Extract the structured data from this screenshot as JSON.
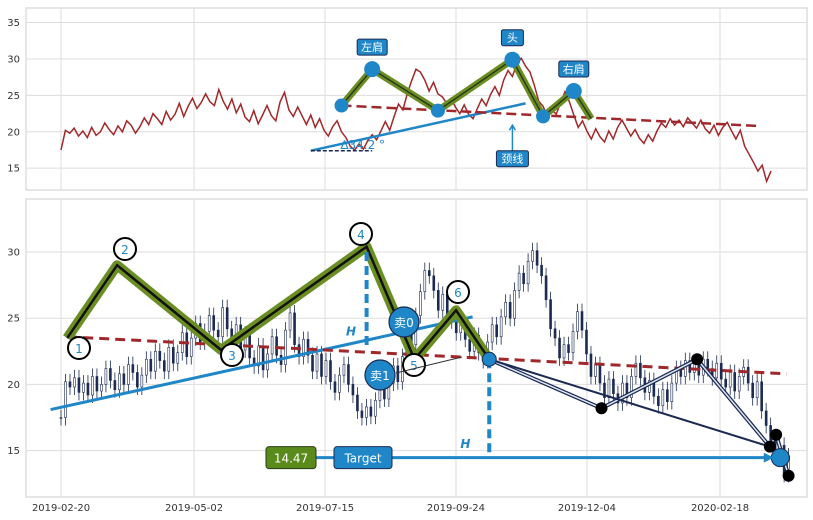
{
  "chart_data": [
    {
      "type": "line",
      "panel": "top",
      "ylim": [
        12,
        37
      ],
      "yticks": [
        15,
        20,
        25,
        30,
        35
      ],
      "grid": true,
      "series": [
        {
          "values": [
            17.5,
            20.2,
            19.8,
            20.5,
            19.4,
            20.1,
            19.2,
            20.6,
            19.5,
            20.0,
            21.2,
            20.3,
            19.6,
            20.8,
            20.0,
            21.5,
            20.9,
            19.8,
            20.7,
            21.9,
            21.0,
            22.5,
            21.8,
            21.0,
            22.8,
            21.6,
            22.4,
            23.9,
            22.1,
            23.5,
            24.6,
            23.2,
            24.0,
            25.2,
            24.1,
            23.6,
            25.8,
            24.2,
            23.1,
            24.5,
            22.6,
            23.8,
            22.0,
            21.4,
            22.9,
            21.1,
            22.3,
            23.6,
            22.2,
            21.5,
            24.1,
            25.4,
            23.0,
            22.1,
            23.4,
            22.2,
            21.0,
            22.3,
            20.6,
            21.8,
            20.2,
            19.4,
            20.7,
            21.5,
            20.0,
            19.2,
            18.0,
            17.5,
            18.3,
            17.6,
            18.8,
            19.6,
            18.9,
            20.1,
            21.4,
            20.2,
            22.1,
            23.8,
            23.0,
            25.2,
            27.0,
            28.6,
            28.2,
            27.1,
            25.6,
            26.8,
            25.2,
            24.8,
            23.9,
            24.6,
            23.4,
            22.5,
            23.7,
            22.4,
            21.8,
            23.2,
            24.5,
            23.6,
            25.1,
            26.2,
            25.0,
            27.1,
            28.4,
            27.6,
            29.3,
            30.1,
            29.0,
            28.2,
            26.4,
            24.2,
            23.5,
            22.0,
            23.0,
            22.4,
            24.0,
            25.5,
            24.1,
            22.3,
            20.6,
            21.5,
            20.1,
            19.0,
            20.4,
            19.3,
            18.6,
            20.1,
            19.0,
            20.6,
            21.6,
            20.5,
            19.4,
            20.3,
            19.1,
            18.4,
            19.6,
            18.7,
            20.1,
            21.2,
            20.6,
            21.8,
            20.9,
            21.6,
            20.7,
            21.9,
            21.2,
            20.5,
            21.6,
            20.4,
            19.8,
            20.9,
            19.5,
            20.6,
            21.3,
            20.1,
            19.0,
            20.2,
            18.0,
            16.9,
            15.8,
            14.6,
            15.4,
            13.2,
            14.6
          ],
          "color": "#a0282b"
        }
      ],
      "annotations": {
        "shoulder_left": "左肩",
        "head": "头",
        "shoulder_right": "右肩",
        "neckline": "颈线",
        "angle": "∆34.2 °"
      },
      "pattern_points": [
        {
          "i": 64,
          "y": 23.6
        },
        {
          "i": 71,
          "y": 28.6
        },
        {
          "i": 86,
          "y": 22.9
        },
        {
          "i": 103,
          "y": 29.9
        },
        {
          "i": 110,
          "y": 22.1
        },
        {
          "i": 117,
          "y": 25.6
        },
        {
          "i": 121,
          "y": 21.8
        }
      ],
      "neckline_dashed": {
        "from": {
          "i": 64,
          "y": 23.6
        },
        "to": {
          "i": 159,
          "y": 20.8
        }
      },
      "trend_line": {
        "from": {
          "i": 57,
          "y": 17.4
        },
        "to": {
          "i": 106,
          "y": 23.9
        }
      },
      "angle_base": {
        "from": {
          "i": 57,
          "y": 17.4
        },
        "to": {
          "i": 71,
          "y": 17.4
        }
      }
    },
    {
      "type": "candlestick",
      "panel": "bottom",
      "ylim": [
        11.5,
        34
      ],
      "yticks": [
        15,
        20,
        25,
        30
      ],
      "grid": true,
      "xtick_labels": [
        "2019-02-20",
        "2019-05-02",
        "2019-07-15",
        "2019-09-24",
        "2019-12-04",
        "2020-02-18"
      ],
      "x": [
        5,
        69,
        132,
        195,
        258,
        322
      ],
      "xlim": [
        -5,
        363
      ],
      "wave_points": [
        {
          "label": "1",
          "x": 8,
          "y": 23.5
        },
        {
          "label": "2",
          "x": 32,
          "y": 29.0
        },
        {
          "label": "3",
          "x": 82,
          "y": 22.6
        },
        {
          "label": "4",
          "x": 152,
          "y": 30.4
        },
        {
          "label": "5",
          "x": 175,
          "y": 21.9
        },
        {
          "label": "6",
          "x": 195,
          "y": 25.6
        },
        {
          "x": 211,
          "y": 21.9
        }
      ],
      "neckline_dashed": {
        "from": {
          "x": 8,
          "y": 23.6
        },
        "to": {
          "x": 354,
          "y": 20.8
        }
      },
      "trend_line": {
        "from": {
          "x": 0,
          "y": 18.1
        },
        "to": {
          "x": 203,
          "y": 25.1
        }
      },
      "target_price": "14.47",
      "target_label": "Target",
      "h_label": "H",
      "sell_labels": [
        "卖0",
        "卖1"
      ],
      "projection_points": [
        {
          "x": 211,
          "y": 21.9
        },
        {
          "x": 265,
          "y": 18.2
        },
        {
          "x": 311,
          "y": 21.9
        },
        {
          "x": 346,
          "y": 15.3
        },
        {
          "x": 349,
          "y": 16.2
        },
        {
          "x": 355,
          "y": 13.1
        }
      ],
      "colors": {
        "candle": "#1b2a52",
        "trend": "#1f86c8",
        "neckline": "#a0282b",
        "zigzag": "#6b8e23",
        "badge": "#1f86c8",
        "target_box": "#5a8a1a"
      }
    }
  ]
}
